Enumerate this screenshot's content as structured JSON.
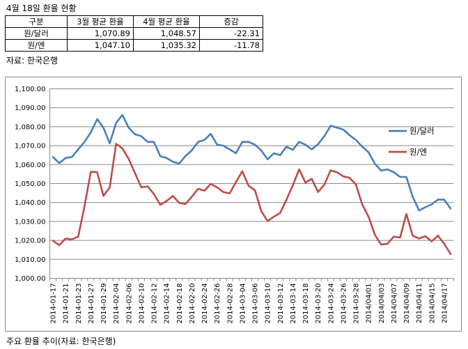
{
  "header": {
    "title": "4월 18일 환율 현황",
    "source": "자료: 한국은행",
    "caption": "주요 환율 추이(자료: 한국은행)"
  },
  "summary_table": {
    "headers": [
      "구분",
      "3월 평균 환율",
      "4월 평균 환율",
      "증감"
    ],
    "rows": [
      [
        "원/달러",
        "1,070.89",
        "1,048.57",
        "-22.31"
      ],
      [
        "원/엔",
        "1,047.10",
        "1,035.32",
        "-11.78"
      ]
    ]
  },
  "chart_data": {
    "type": "line",
    "ylim": [
      1000,
      1100
    ],
    "yticks": [
      "1,000.00",
      "1,010.00",
      "1,020.00",
      "1,030.00",
      "1,040.00",
      "1,050.00",
      "1,060.00",
      "1,070.00",
      "1,080.00",
      "1,090.00",
      "1,100.00"
    ],
    "grid": true,
    "legend_position": "right",
    "x": [
      "2014-01-17",
      "2014-01-20",
      "2014-01-21",
      "2014-01-22",
      "2014-01-23",
      "2014-01-24",
      "2014-01-27",
      "2014-01-28",
      "2014-01-29",
      "2014-01-30",
      "2014-02-03",
      "2014-02-04",
      "2014-02-05",
      "2014-02-06",
      "2014-02-07",
      "2014-02-10",
      "2014-02-11",
      "2014-02-12",
      "2014-02-13",
      "2014-02-14",
      "2014-02-17",
      "2014-02-18",
      "2014-02-19",
      "2014-02-20",
      "2014-02-21",
      "2014-02-24",
      "2014-02-25",
      "2014-02-26",
      "2014-02-27",
      "2014-02-28",
      "2014-03-03",
      "2014-03-04",
      "2014-03-05",
      "2014-03-06",
      "2014-03-07",
      "2014-03-10",
      "2014-03-11",
      "2014-03-12",
      "2014-03-13",
      "2014-03-14",
      "2014-03-17",
      "2014-03-18",
      "2014-03-19",
      "2014-03-20",
      "2014-03-21",
      "2014-03-24",
      "2014-03-25",
      "2014-03-26",
      "2014-03-27",
      "2014-03-28",
      "2014-03-31",
      "2014/04/01",
      "2014/04/02",
      "2014/04/03",
      "2014/04/04",
      "2014/04/07",
      "2014/04/08",
      "2014/04/09",
      "2014/04/10",
      "2014/04/11",
      "2014/04/14",
      "2014/04/15",
      "2014/04/16",
      "2014/04/17"
    ],
    "xtick_labels": [
      "2014-01-17",
      "2014-01-21",
      "2014-01-23",
      "2014-01-27",
      "2014-01-29",
      "2014-02-04",
      "2014-02-06",
      "2014-02-10",
      "2014-02-12",
      "2014-02-14",
      "2014-02-18",
      "2014-02-20",
      "2014-02-24",
      "2014-02-26",
      "2014-02-28",
      "2014-03-04",
      "2014-03-06",
      "2014-03-10",
      "2014-03-12",
      "2014-03-14",
      "2014-03-18",
      "2014-03-20",
      "2014-03-24",
      "2014-03-26",
      "2014-03-28",
      "2014/04/01",
      "2014/04/03",
      "2014/04/07",
      "2014/04/09",
      "2014/04/11",
      "2014/04/15",
      "2014/04/17"
    ],
    "xtick_every": 2,
    "series": [
      {
        "name": "원/달러",
        "color": "#4a7ebb",
        "values": [
          1064.0,
          1060.8,
          1063.5,
          1064.0,
          1068.0,
          1072.0,
          1077.0,
          1084.0,
          1079.5,
          1071.2,
          1082.0,
          1086.2,
          1079.5,
          1076.0,
          1075.0,
          1072.0,
          1072.0,
          1064.5,
          1063.5,
          1061.5,
          1060.5,
          1064.5,
          1067.5,
          1072.0,
          1073.0,
          1076.2,
          1070.5,
          1070.0,
          1068.0,
          1066.0,
          1072.0,
          1072.0,
          1070.5,
          1067.5,
          1062.8,
          1066.0,
          1065.0,
          1069.5,
          1067.8,
          1072.0,
          1070.5,
          1068.0,
          1070.8,
          1075.0,
          1080.5,
          1079.5,
          1078.5,
          1075.5,
          1073.0,
          1069.5,
          1066.5,
          1060.5,
          1056.8,
          1057.5,
          1056.0,
          1053.5,
          1053.5,
          1043.0,
          1035.8,
          1037.5,
          1039.0,
          1041.5,
          1041.5,
          1036.8
        ]
      },
      {
        "name": "원/엔",
        "color": "#be4b48",
        "values": [
          1019.8,
          1017.5,
          1021.0,
          1020.5,
          1022.0,
          1038.0,
          1056.2,
          1056.0,
          1043.5,
          1048.0,
          1071.0,
          1068.5,
          1063.0,
          1055.5,
          1048.0,
          1048.5,
          1044.5,
          1038.8,
          1040.8,
          1043.5,
          1039.8,
          1039.2,
          1043.0,
          1047.2,
          1046.2,
          1049.8,
          1048.0,
          1045.5,
          1044.8,
          1050.8,
          1056.5,
          1048.8,
          1046.5,
          1035.5,
          1030.2,
          1032.5,
          1034.5,
          1041.5,
          1049.0,
          1057.5,
          1050.5,
          1052.5,
          1045.5,
          1049.5,
          1057.0,
          1056.0,
          1053.8,
          1053.0,
          1049.5,
          1039.0,
          1032.5,
          1023.0,
          1017.8,
          1018.2,
          1022.0,
          1021.5,
          1034.0,
          1022.5,
          1021.0,
          1022.2,
          1019.5,
          1022.5,
          1018.2,
          1012.8
        ]
      }
    ]
  }
}
